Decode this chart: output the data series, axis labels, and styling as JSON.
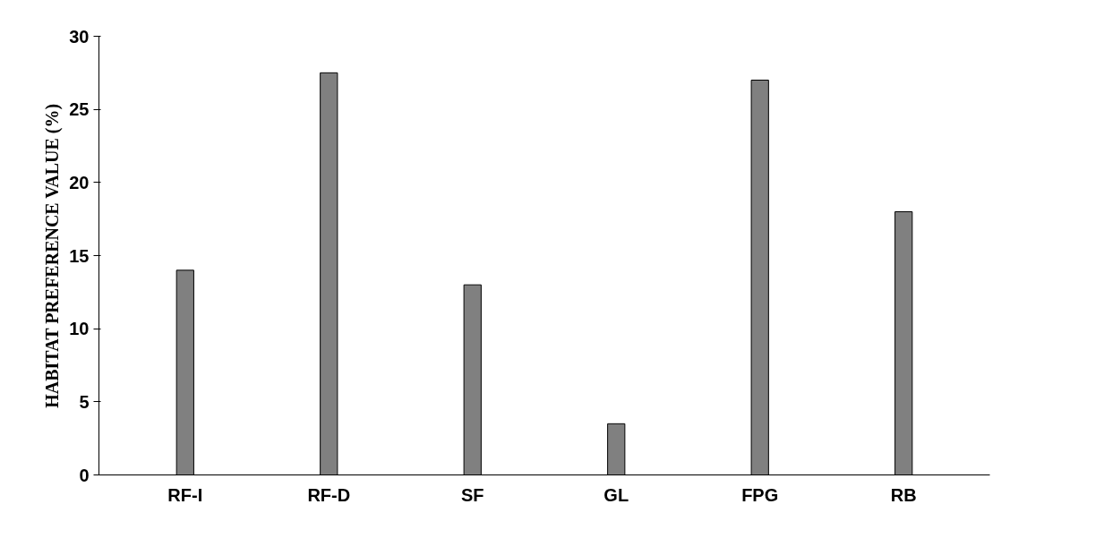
{
  "chart_data": {
    "type": "bar",
    "ylabel": "HABITAT PREFERENCE VALUE (%)",
    "categories": [
      "RF-I",
      "RF-D",
      "SF",
      "GL",
      "FPG",
      "RB"
    ],
    "values": [
      14,
      27.5,
      13,
      3.5,
      27,
      18
    ],
    "color": "#808080",
    "ylim": [
      0,
      30
    ],
    "yticks": [
      0,
      5,
      10,
      15,
      20,
      25,
      30
    ],
    "grid": false
  }
}
